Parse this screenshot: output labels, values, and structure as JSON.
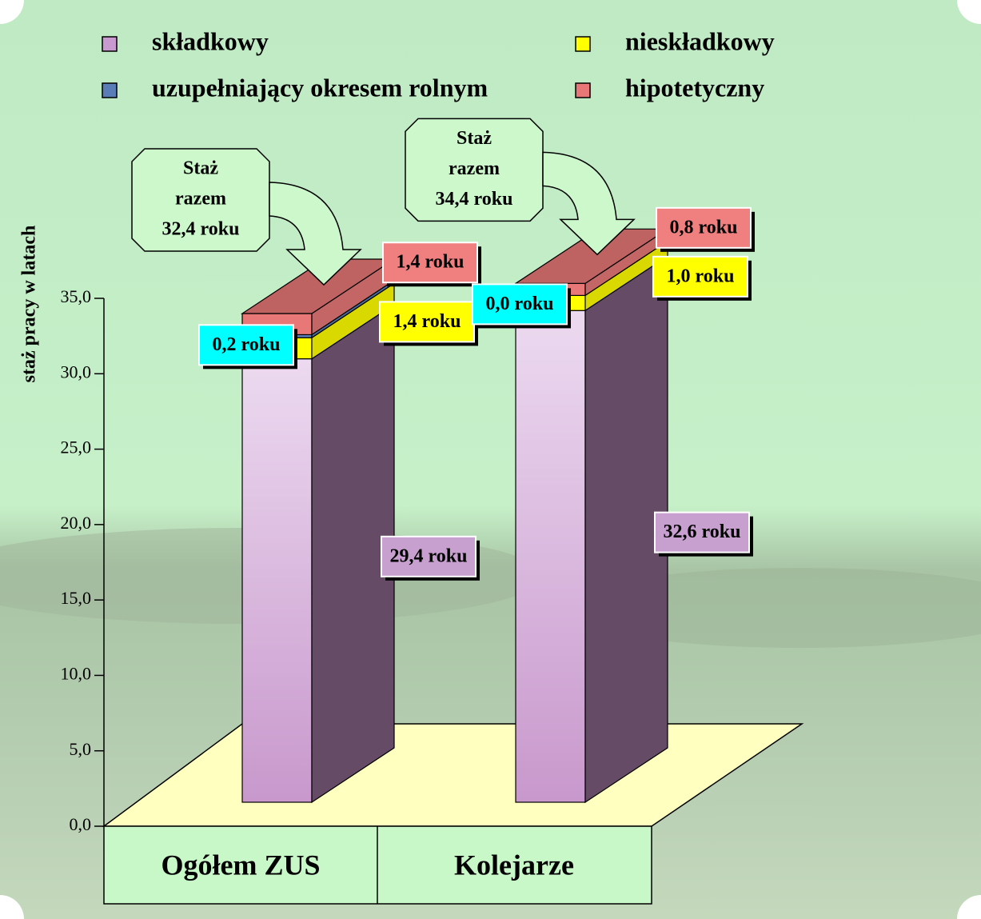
{
  "chart_data": {
    "type": "bar3d-stacked",
    "y_label": "staż pracy w latach",
    "categories": [
      "Ogółem ZUS",
      "Kolejarze"
    ],
    "series": [
      {
        "name": "składkowy",
        "color": "#c89ad0",
        "label_color": "#c8a0d0",
        "values": [
          29.4,
          32.6
        ],
        "value_labels": [
          "29,4 roku",
          "32,6 roku"
        ]
      },
      {
        "name": "nieskładkowy",
        "color": "#ffff00",
        "label_color": "#ffff00",
        "values": [
          1.4,
          1.0
        ],
        "value_labels": [
          "1,4 roku",
          "1,0 roku"
        ]
      },
      {
        "name": "uzupełniający okresem rolnym",
        "color": "#5a7db8",
        "label_color": "#00ffff",
        "values": [
          0.2,
          0.0
        ],
        "value_labels": [
          "0,2 roku",
          "0,0 roku"
        ]
      },
      {
        "name": "hipotetyczny",
        "color": "#e87878",
        "label_color": "#f08080",
        "values": [
          1.4,
          0.8
        ],
        "value_labels": [
          "1,4 roku",
          "0,8 roku"
        ]
      }
    ],
    "annotations": [
      {
        "lines": [
          "Staż",
          "razem",
          "32,4 roku"
        ]
      },
      {
        "lines": [
          "Staż",
          "razem",
          "34,4 roku"
        ]
      }
    ],
    "ylim": [
      0,
      35
    ],
    "yticks": [
      {
        "value": 0,
        "label": "0,0"
      },
      {
        "value": 5,
        "label": "5,0"
      },
      {
        "value": 10,
        "label": "10,0"
      },
      {
        "value": 15,
        "label": "15,0"
      },
      {
        "value": 20,
        "label": "20,0"
      },
      {
        "value": 25,
        "label": "25,0"
      },
      {
        "value": 30,
        "label": "30,0"
      },
      {
        "value": 35,
        "label": "35,0"
      }
    ]
  }
}
